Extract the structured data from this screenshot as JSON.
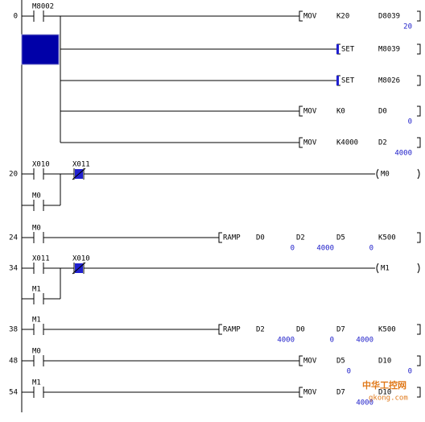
{
  "rungs": [
    {
      "step": "0",
      "contacts": [
        {
          "label": "M8002"
        }
      ],
      "outputs": [
        {
          "instr": "MOV",
          "operands": [
            "K20",
            "D8039"
          ],
          "monitor": [
            "20"
          ]
        },
        {
          "instr": "SET",
          "operands": [
            "M8039"
          ]
        },
        {
          "instr": "SET",
          "operands": [
            "M8026"
          ]
        },
        {
          "instr": "MOV",
          "operands": [
            "K0",
            "D0"
          ],
          "monitor": [
            "0"
          ]
        },
        {
          "instr": "MOV",
          "operands": [
            "K4000",
            "D2"
          ],
          "monitor": [
            "4000"
          ]
        }
      ]
    },
    {
      "step": "20",
      "contacts": [
        {
          "label": "X010"
        },
        {
          "label": "X011",
          "nc": true
        }
      ],
      "branch": [
        {
          "label": "M0"
        }
      ],
      "coil": "M0"
    },
    {
      "step": "24",
      "contacts": [
        {
          "label": "M0"
        }
      ],
      "outputs": [
        {
          "instr": "RAMP",
          "operands": [
            "D0",
            "D2",
            "D5",
            "K500"
          ],
          "monitor": [
            "0",
            "4000",
            "0"
          ]
        }
      ]
    },
    {
      "step": "34",
      "contacts": [
        {
          "label": "X011"
        },
        {
          "label": "X010",
          "nc": true
        }
      ],
      "branch": [
        {
          "label": "M1"
        }
      ],
      "coil": "M1"
    },
    {
      "step": "38",
      "contacts": [
        {
          "label": "M1"
        }
      ],
      "outputs": [
        {
          "instr": "RAMP",
          "operands": [
            "D2",
            "D0",
            "D7",
            "K500"
          ],
          "monitor": [
            "4000",
            "0",
            "4000"
          ]
        }
      ]
    },
    {
      "step": "48",
      "contacts": [
        {
          "label": "M0"
        }
      ],
      "outputs": [
        {
          "instr": "MOV",
          "operands": [
            "D5",
            "D10"
          ],
          "monitor": [
            "0",
            "0"
          ]
        }
      ]
    },
    {
      "step": "54",
      "contacts": [
        {
          "label": "M1"
        }
      ],
      "outputs": [
        {
          "instr": "MOV",
          "operands": [
            "D7",
            "D10"
          ],
          "monitor": [
            "4000"
          ]
        }
      ]
    }
  ],
  "watermark": {
    "name": "中华工控网",
    "url": "gkong.com"
  }
}
